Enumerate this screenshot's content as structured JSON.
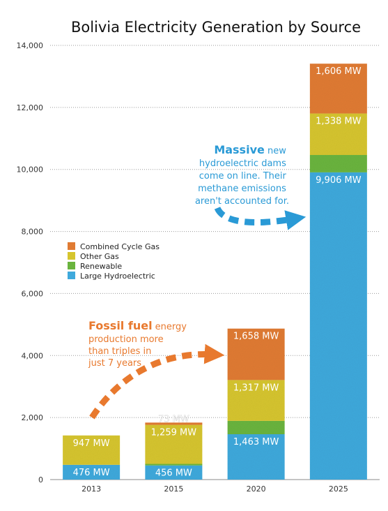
{
  "chart_data": {
    "type": "bar",
    "stacked": true,
    "title": "Bolivia Electricity Generation by Source",
    "xlabel": "",
    "ylabel": "",
    "ylim": [
      0,
      14000
    ],
    "yticks": [
      0,
      2000,
      4000,
      6000,
      8000,
      10000,
      12000,
      14000
    ],
    "ytick_labels": [
      "0",
      "2,000",
      "4,000",
      "6,000",
      "8,000",
      "10,000",
      "12,000",
      "14,000"
    ],
    "categories": [
      "2013",
      "2015",
      "2020",
      "2025"
    ],
    "grid": true,
    "legend_position": "middle-left",
    "series": [
      {
        "name": "Large Hydroelectric",
        "color": "#3fa9dc",
        "values": [
          476,
          456,
          1463,
          9906
        ],
        "labels": [
          "476 MW",
          "456 MW",
          "1,463 MW",
          "9,906 MW"
        ]
      },
      {
        "name": "Renewable",
        "color": "#6ab43e",
        "values": [
          0,
          50,
          430,
          560
        ],
        "labels": [
          "",
          "",
          "",
          ""
        ]
      },
      {
        "name": "Other Gas",
        "color": "#d6c52e",
        "values": [
          947,
          1259,
          1317,
          1338
        ],
        "labels": [
          "947 MW",
          "1,259 MW",
          "1,317 MW",
          "1,338 MW"
        ]
      },
      {
        "name": "Combined Cycle Gas",
        "color": "#e07b33",
        "values": [
          0,
          73,
          1658,
          1606
        ],
        "labels": [
          "",
          "73 MW",
          "1,658 MW",
          "1,606 MW"
        ]
      }
    ],
    "legend_order": [
      "Combined Cycle Gas",
      "Other Gas",
      "Renewable",
      "Large Hydroelectric"
    ],
    "annotations": [
      {
        "id": "massive",
        "color": "#2a9ad6",
        "emphasis": "Massive",
        "lines": [
          " new",
          "hydroelectric dams",
          "come on line. Their",
          "methane emissions",
          "aren't accounted for."
        ]
      },
      {
        "id": "fossil",
        "color": "#e8792e",
        "emphasis": "Fossil fuel",
        "lines": [
          " energy",
          "production more",
          "than triples in",
          "just 7 years"
        ]
      }
    ]
  }
}
